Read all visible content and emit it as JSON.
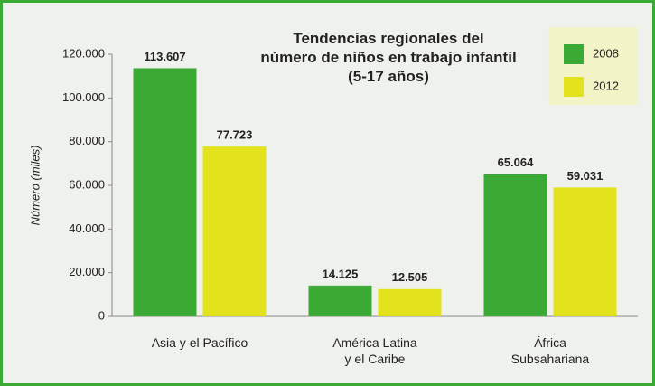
{
  "chart_data": {
    "type": "bar",
    "title": "Tendencias regionales del\nnúmero de niños en trabajo infantil\n(5-17 años)",
    "y_label": "Número (miles)",
    "categories": [
      "Asia y el Pacífico",
      "América Latina\ny el Caribe",
      "África\nSubsahariana"
    ],
    "series": [
      {
        "name": "2008",
        "color": "#3aaa35",
        "values": [
          113607,
          14125,
          65064
        ],
        "value_labels": [
          "113.607",
          "14.125",
          "65.064"
        ]
      },
      {
        "name": "2012",
        "color": "#e3e31d",
        "values": [
          77723,
          12505,
          59031
        ],
        "value_labels": [
          "77.723",
          "12.505",
          "59.031"
        ]
      }
    ],
    "ylim": [
      0,
      120000
    ],
    "yticks": [
      0,
      {
        "value": 20000,
        "label": "20.000"
      },
      {
        "value": 40000,
        "label": "40.000"
      },
      {
        "value": 60000,
        "label": "60.000"
      },
      {
        "value": 80000,
        "label": "80.000"
      },
      {
        "value": 100000,
        "label": "100.000"
      },
      {
        "value": 120000,
        "label": "120.000"
      }
    ],
    "legend": "top-right"
  }
}
